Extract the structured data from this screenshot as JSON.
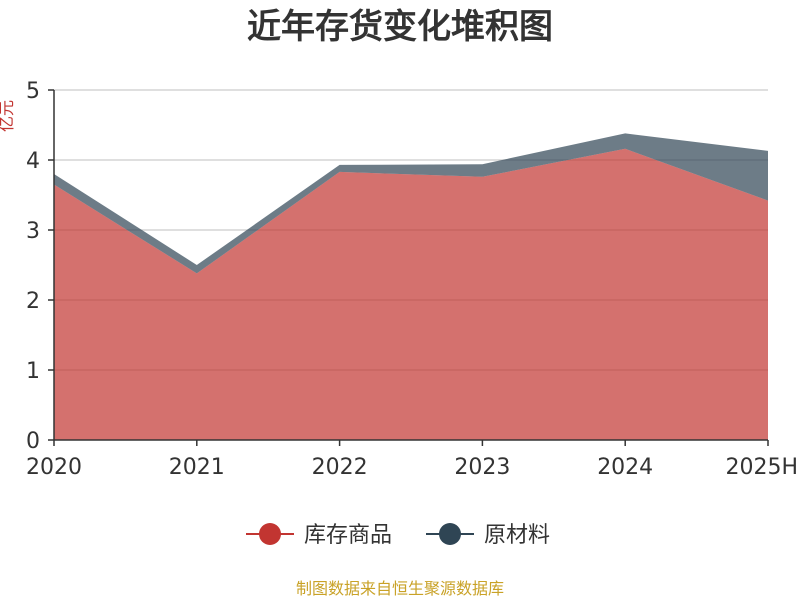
{
  "chart_data": {
    "type": "area",
    "stacked": true,
    "title": "近年存货变化堆积图",
    "ylabel": "亿元",
    "categories": [
      "2020",
      "2021",
      "2022",
      "2023",
      "2024",
      "2025H"
    ],
    "ylim": [
      0,
      5
    ],
    "yticks": [
      0,
      1,
      2,
      3,
      4,
      5
    ],
    "grid": true,
    "legend_position": "bottom",
    "series": [
      {
        "name": "库存商品",
        "color": "#c23531",
        "values": [
          3.65,
          2.38,
          3.83,
          3.76,
          4.16,
          3.42
        ]
      },
      {
        "name": "原材料",
        "color": "#2f4554",
        "values": [
          0.15,
          0.12,
          0.1,
          0.18,
          0.22,
          0.71
        ]
      }
    ],
    "source": "制图数据来自恒生聚源数据库"
  }
}
